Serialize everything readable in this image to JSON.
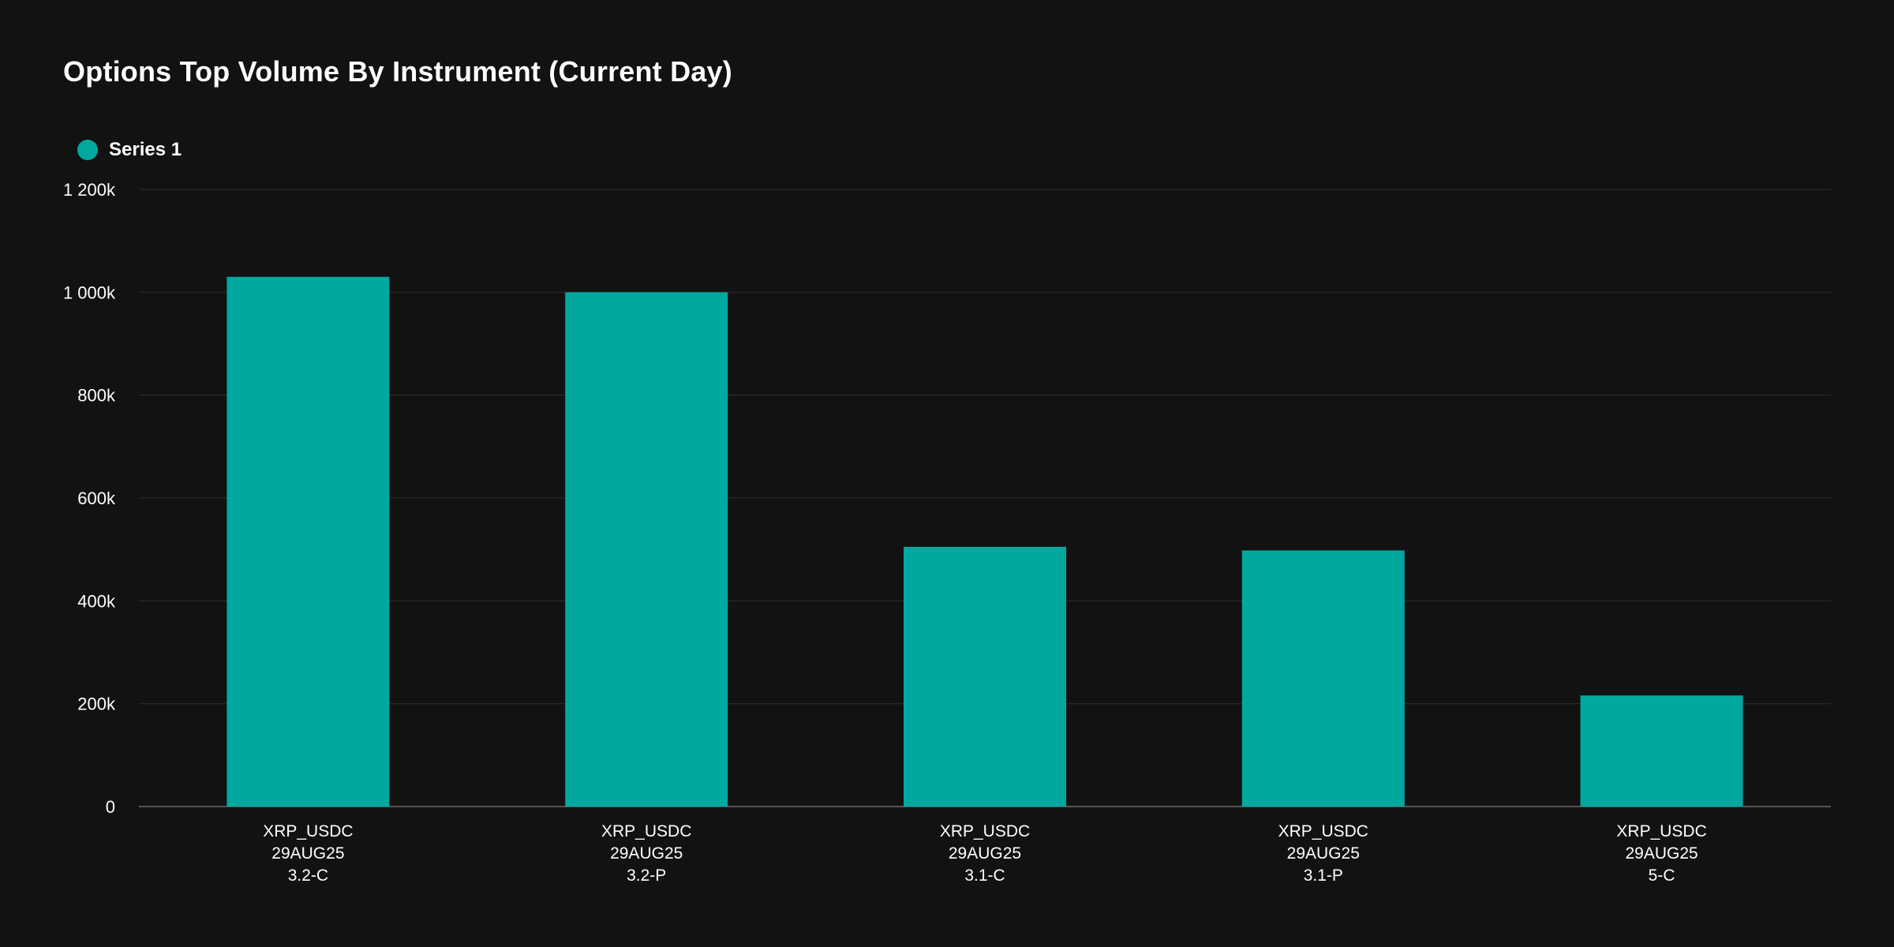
{
  "colors": {
    "background": "#121212",
    "bar": "#00a8a0",
    "grid": "#262626",
    "axis": "#555555"
  },
  "chart_data": {
    "type": "bar",
    "title": "Options Top Volume By Instrument (Current Day)",
    "xlabel": "",
    "ylabel": "",
    "ylim": [
      0,
      1200000
    ],
    "yticks": [
      {
        "value": 0,
        "label": "0"
      },
      {
        "value": 200000,
        "label": "200k"
      },
      {
        "value": 400000,
        "label": "400k"
      },
      {
        "value": 600000,
        "label": "600k"
      },
      {
        "value": 800000,
        "label": "800k"
      },
      {
        "value": 1000000,
        "label": "1 000k"
      },
      {
        "value": 1200000,
        "label": "1 200k"
      }
    ],
    "grid": true,
    "legend_position": "top-left",
    "categories": [
      [
        "XRP_USDC",
        "29AUG25",
        "3.2-C"
      ],
      [
        "XRP_USDC",
        "29AUG25",
        "3.2-P"
      ],
      [
        "XRP_USDC",
        "29AUG25",
        "3.1-C"
      ],
      [
        "XRP_USDC",
        "29AUG25",
        "3.1-P"
      ],
      [
        "XRP_USDC",
        "29AUG25",
        "5-C"
      ]
    ],
    "series": [
      {
        "name": "Series 1",
        "values": [
          1030000,
          1000000,
          505000,
          498000,
          216000
        ]
      }
    ]
  }
}
